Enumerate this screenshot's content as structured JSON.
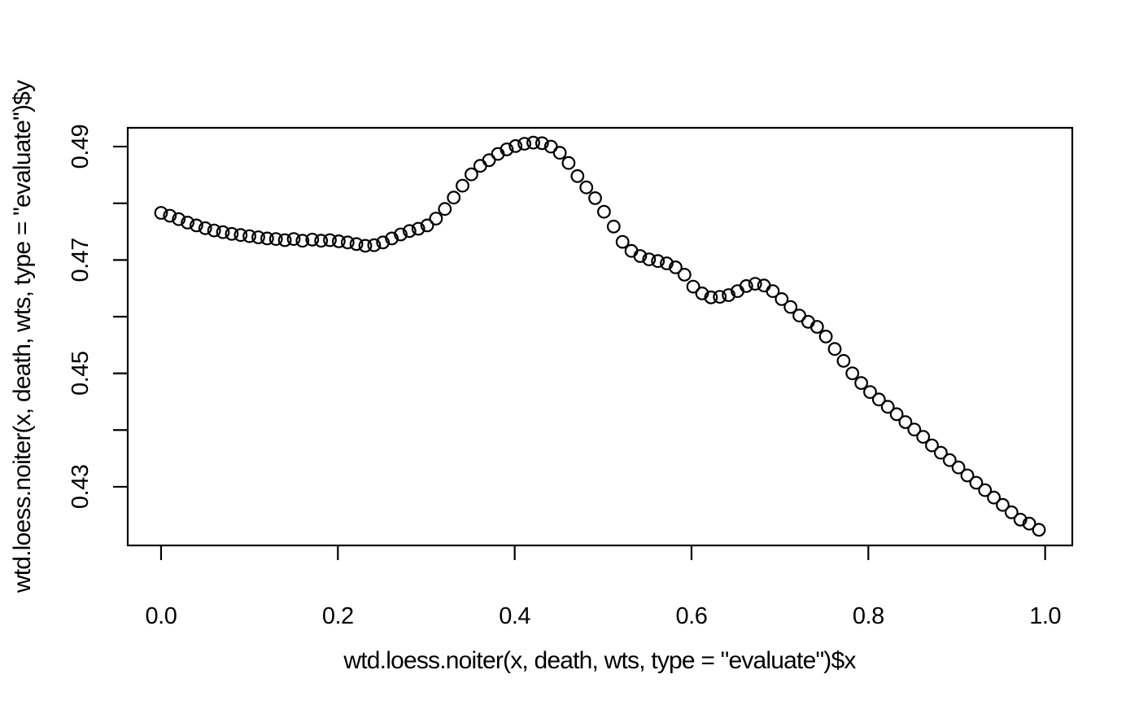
{
  "figure": {
    "background_color": "#ffffff",
    "foreground_color": "#000000",
    "marker_style": "open-circle"
  },
  "chart_data": {
    "type": "scatter",
    "title": "",
    "xlabel": "wtd.loess.noiter(x, death, wts, type = \"evaluate\")$x",
    "ylabel": "wtd.loess.noiter(x, death, wts, type = \"evaluate\")$y",
    "xlim": [
      -0.0377,
      1.0307
    ],
    "ylim": [
      0.41965,
      0.49331
    ],
    "x_ticks": [
      0.0,
      0.2,
      0.4,
      0.6,
      0.8,
      1.0
    ],
    "x_tick_labels": [
      "0.0",
      "0.2",
      "0.4",
      "0.6",
      "0.8",
      "1.0"
    ],
    "y_ticks": [
      0.43,
      0.44,
      0.45,
      0.46,
      0.47,
      0.48,
      0.49
    ],
    "y_tick_labels": [
      "0.43",
      "",
      "0.45",
      "",
      "0.47",
      "",
      "0.49"
    ],
    "grid": false,
    "legend": null,
    "x": [
      0.0,
      0.01,
      0.02,
      0.03,
      0.04,
      0.05,
      0.06,
      0.07,
      0.08,
      0.09,
      0.1,
      0.11,
      0.12,
      0.13,
      0.14,
      0.15,
      0.16,
      0.171,
      0.181,
      0.191,
      0.201,
      0.211,
      0.221,
      0.231,
      0.241,
      0.251,
      0.261,
      0.271,
      0.281,
      0.291,
      0.301,
      0.311,
      0.321,
      0.331,
      0.341,
      0.351,
      0.361,
      0.371,
      0.381,
      0.391,
      0.401,
      0.411,
      0.421,
      0.431,
      0.441,
      0.451,
      0.461,
      0.471,
      0.481,
      0.491,
      0.501,
      0.512,
      0.522,
      0.532,
      0.542,
      0.552,
      0.562,
      0.572,
      0.582,
      0.592,
      0.602,
      0.612,
      0.622,
      0.632,
      0.642,
      0.652,
      0.662,
      0.672,
      0.682,
      0.692,
      0.702,
      0.712,
      0.722,
      0.732,
      0.742,
      0.752,
      0.762,
      0.772,
      0.782,
      0.792,
      0.802,
      0.812,
      0.822,
      0.832,
      0.842,
      0.852,
      0.862,
      0.872,
      0.882,
      0.892,
      0.902,
      0.912,
      0.922,
      0.932,
      0.942,
      0.952,
      0.962,
      0.972,
      0.982,
      0.993
    ],
    "y": [
      0.4783,
      0.4778,
      0.4772,
      0.4766,
      0.4761,
      0.4756,
      0.4752,
      0.4749,
      0.4746,
      0.4744,
      0.4742,
      0.474,
      0.4738,
      0.4737,
      0.4735,
      0.4737,
      0.4734,
      0.4736,
      0.4734,
      0.4735,
      0.4733,
      0.4731,
      0.4728,
      0.4725,
      0.4726,
      0.4731,
      0.4738,
      0.4745,
      0.4751,
      0.4755,
      0.4761,
      0.4773,
      0.479,
      0.481,
      0.4831,
      0.4851,
      0.4866,
      0.4876,
      0.4887,
      0.4895,
      0.4901,
      0.4905,
      0.4907,
      0.4906,
      0.49,
      0.4889,
      0.4871,
      0.4848,
      0.4828,
      0.4809,
      0.4785,
      0.4759,
      0.4732,
      0.4716,
      0.4707,
      0.4701,
      0.4698,
      0.4694,
      0.4687,
      0.4674,
      0.4653,
      0.4641,
      0.4634,
      0.4635,
      0.4638,
      0.4645,
      0.4654,
      0.4658,
      0.4655,
      0.4645,
      0.4631,
      0.4617,
      0.4602,
      0.4591,
      0.4582,
      0.4565,
      0.4543,
      0.4522,
      0.45,
      0.4483,
      0.4467,
      0.4454,
      0.4441,
      0.4428,
      0.4414,
      0.4401,
      0.4388,
      0.4373,
      0.436,
      0.4347,
      0.4334,
      0.432,
      0.4307,
      0.4294,
      0.4281,
      0.4268,
      0.4255,
      0.4242,
      0.4235,
      0.4224
    ]
  }
}
